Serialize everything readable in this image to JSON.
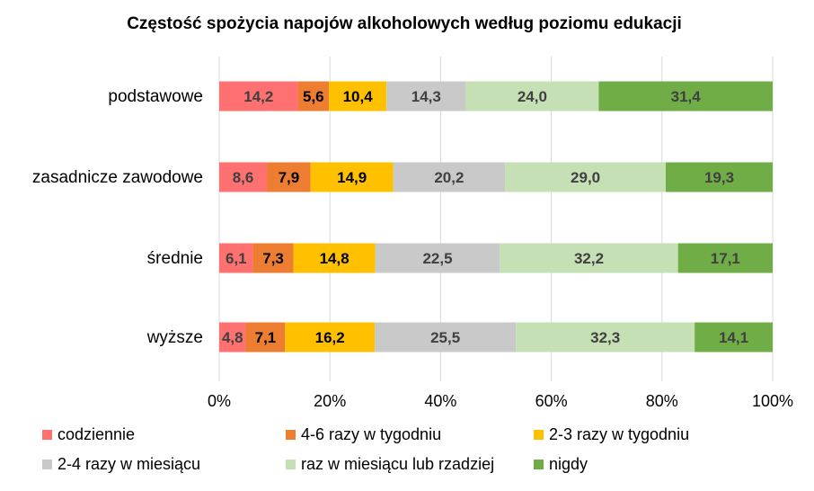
{
  "chart_data": {
    "type": "bar",
    "orientation": "horizontal",
    "stacked": "percent",
    "title": "Częstość spożycia napojów alkoholowych według poziomu edukacji",
    "categories": [
      "podstawowe",
      "zasadnicze zawodowe",
      "średnie",
      "wyższe"
    ],
    "series": [
      {
        "name": "codziennie",
        "color": "#ff7070",
        "label_color": "#404040",
        "values": [
          14.2,
          8.6,
          6.1,
          4.8
        ],
        "labels": [
          "14,2",
          "8,6",
          "6,1",
          "4,8"
        ]
      },
      {
        "name": "4-6 razy w tygodniu",
        "color": "#ed7d31",
        "label_color": "#000000",
        "values": [
          5.6,
          7.9,
          7.3,
          7.1
        ],
        "labels": [
          "5,6",
          "7,9",
          "7,3",
          "7,1"
        ]
      },
      {
        "name": "2-3 razy w tygodniu",
        "color": "#ffc000",
        "label_color": "#000000",
        "values": [
          10.4,
          14.9,
          14.8,
          16.2
        ],
        "labels": [
          "10,4",
          "14,9",
          "14,8",
          "16,2"
        ]
      },
      {
        "name": "2-4 razy w miesiącu",
        "color": "#c9c9c9",
        "label_color": "#404040",
        "values": [
          14.3,
          20.2,
          22.5,
          25.5
        ],
        "labels": [
          "14,3",
          "20,2",
          "22,5",
          "25,5"
        ]
      },
      {
        "name": "raz w miesiącu lub rzadziej",
        "color": "#c5e0b4",
        "label_color": "#404040",
        "values": [
          24.0,
          29.0,
          32.2,
          32.3
        ],
        "labels": [
          "24,0",
          "29,0",
          "32,2",
          "32,3"
        ]
      },
      {
        "name": "nigdy",
        "color": "#70ad47",
        "label_color": "#404040",
        "values": [
          31.4,
          19.3,
          17.1,
          14.1
        ],
        "labels": [
          "31,4",
          "19,3",
          "17,1",
          "14,1"
        ]
      }
    ],
    "xlim": [
      0,
      100
    ],
    "x_ticks": [
      "0%",
      "20%",
      "40%",
      "60%",
      "80%",
      "100%"
    ],
    "grid": true,
    "legend_position": "bottom"
  }
}
